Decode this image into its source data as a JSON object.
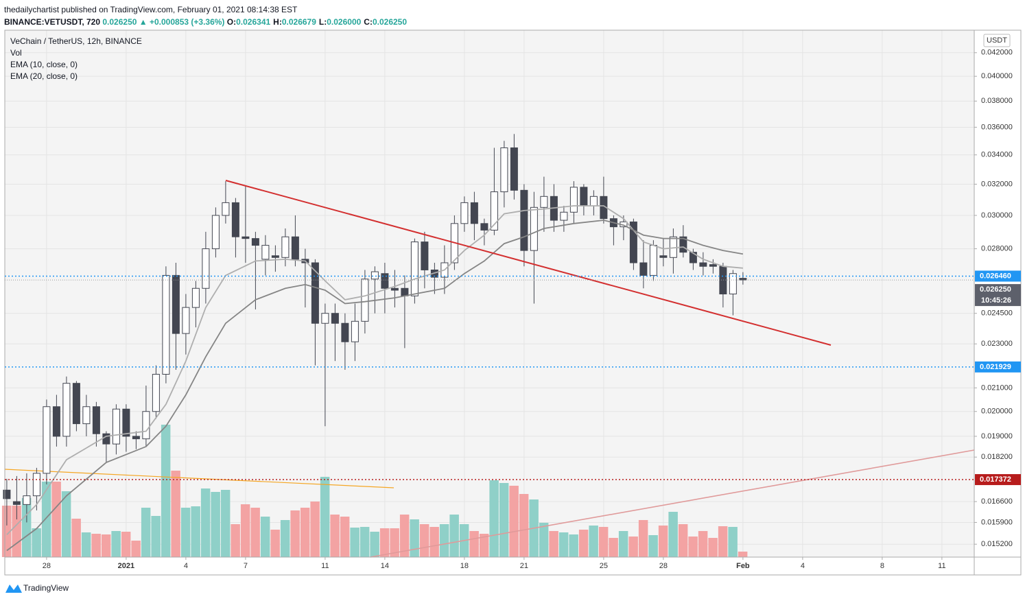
{
  "header": {
    "publisher": "thedailychartist published on TradingView.com, February 01, 2021 08:14:38 EST",
    "symbol": "BINANCE:VETUSDT, 720",
    "price": "0.026250",
    "change": "▲ +0.000853 (+3.36%)",
    "fields": [
      {
        "label": "O:",
        "value": "0.026341"
      },
      {
        "label": "H:",
        "value": "0.026679"
      },
      {
        "label": "L:",
        "value": "0.026000"
      },
      {
        "label": "C:",
        "value": "0.026250"
      }
    ]
  },
  "footer": "TradingView",
  "chart_data": {
    "type": "candlestick",
    "title": "VeChain / TetherUS, 12h, BINANCE",
    "volume_name": "Vol",
    "currency": "USDT",
    "log_scale": true,
    "grid": true,
    "ylim": [
      0.0148,
      0.044
    ],
    "yticks": [
      {
        "value": 0.042,
        "label": "0.042000"
      },
      {
        "value": 0.04,
        "label": "0.040000"
      },
      {
        "value": 0.038,
        "label": "0.038000"
      },
      {
        "value": 0.036,
        "label": "0.036000"
      },
      {
        "value": 0.034,
        "label": "0.034000"
      },
      {
        "value": 0.032,
        "label": "0.032000"
      },
      {
        "value": 0.03,
        "label": "0.030000"
      },
      {
        "value": 0.028,
        "label": "0.028000"
      },
      {
        "value": 0.0245,
        "label": "0.024500"
      },
      {
        "value": 0.023,
        "label": "0.023000"
      },
      {
        "value": 0.021,
        "label": "0.021000"
      },
      {
        "value": 0.02,
        "label": "0.020000"
      },
      {
        "value": 0.019,
        "label": "0.019000"
      },
      {
        "value": 0.0182,
        "label": "0.018200"
      },
      {
        "value": 0.0166,
        "label": "0.016600"
      },
      {
        "value": 0.0159,
        "label": "0.015900"
      },
      {
        "value": 0.0152,
        "label": "0.015200"
      }
    ],
    "xlim": [
      -0.2,
      97.25
    ],
    "xticks": [
      {
        "value": 4,
        "label": "28"
      },
      {
        "value": 12,
        "label": "2021"
      },
      {
        "value": 18,
        "label": "4"
      },
      {
        "value": 24,
        "label": "7"
      },
      {
        "value": 32,
        "label": "11"
      },
      {
        "value": 38,
        "label": "14"
      },
      {
        "value": 46,
        "label": "18"
      },
      {
        "value": 52,
        "label": "21"
      },
      {
        "value": 60,
        "label": "25"
      },
      {
        "value": 66,
        "label": "28"
      },
      {
        "value": 74,
        "label": "Feb"
      },
      {
        "value": 80,
        "label": "4"
      },
      {
        "value": 88,
        "label": "8"
      },
      {
        "value": 94,
        "label": "11"
      }
    ],
    "up_color": "#ffffff",
    "down_color": "#434651",
    "vol_up_color": "#8fd0c8",
    "vol_down_color": "#f3a3a3",
    "open": [
      0.017,
      0.0166,
      0.0165,
      0.0168,
      0.0176,
      0.0202,
      0.019,
      0.0212,
      0.0195,
      0.0202,
      0.0191,
      0.0187,
      0.0201,
      0.019,
      0.0189,
      0.02,
      0.0216,
      0.0265,
      0.0235,
      0.0248,
      0.0258,
      0.028,
      0.03,
      0.0308,
      0.0287,
      0.0286,
      0.0274,
      0.0276,
      0.0275,
      0.0287,
      0.0274,
      0.0272,
      0.024,
      0.0245,
      0.024,
      0.0231,
      0.0241,
      0.0263,
      0.0266,
      0.0258,
      0.0258,
      0.0254,
      0.0284,
      0.0268,
      0.0264,
      0.0272,
      0.0295,
      0.0308,
      0.0295,
      0.0291,
      0.0315,
      0.0345,
      0.0316,
      0.0279,
      0.0305,
      0.0312,
      0.0297,
      0.0302,
      0.0318,
      0.0306,
      0.0312,
      0.0298,
      0.0293,
      0.0296,
      0.0272,
      0.0265,
      0.0276,
      0.0275,
      0.0287,
      0.0278,
      0.0272,
      0.0271,
      0.027,
      0.0255,
      0.026341
    ],
    "high": [
      0.0174,
      0.0175,
      0.0176,
      0.0178,
      0.0205,
      0.0207,
      0.0215,
      0.0213,
      0.0207,
      0.0204,
      0.0192,
      0.0203,
      0.0203,
      0.0192,
      0.0211,
      0.022,
      0.027,
      0.0272,
      0.0255,
      0.0262,
      0.029,
      0.0305,
      0.0322,
      0.0311,
      0.0319,
      0.029,
      0.0288,
      0.0282,
      0.0292,
      0.03,
      0.028,
      0.0274,
      0.025,
      0.025,
      0.0245,
      0.025,
      0.0268,
      0.027,
      0.0272,
      0.0268,
      0.0265,
      0.0286,
      0.029,
      0.0272,
      0.0282,
      0.03,
      0.0312,
      0.0315,
      0.0298,
      0.0345,
      0.035,
      0.0355,
      0.032,
      0.0315,
      0.0325,
      0.032,
      0.0306,
      0.0322,
      0.032,
      0.0316,
      0.0325,
      0.03,
      0.03,
      0.0298,
      0.0285,
      0.0285,
      0.0286,
      0.0292,
      0.0294,
      0.028,
      0.0278,
      0.0274,
      0.0272,
      0.0268,
      0.026679
    ],
    "low": [
      0.0158,
      0.016,
      0.0159,
      0.0163,
      0.0172,
      0.0186,
      0.0186,
      0.0192,
      0.019,
      0.0186,
      0.018,
      0.0183,
      0.0184,
      0.0185,
      0.0186,
      0.0197,
      0.0212,
      0.0218,
      0.0225,
      0.0238,
      0.025,
      0.0275,
      0.0295,
      0.0275,
      0.0272,
      0.0247,
      0.0265,
      0.0267,
      0.027,
      0.027,
      0.0248,
      0.022,
      0.0194,
      0.0222,
      0.0218,
      0.0222,
      0.0235,
      0.0245,
      0.0245,
      0.0248,
      0.0228,
      0.025,
      0.0258,
      0.0255,
      0.0255,
      0.0268,
      0.029,
      0.0285,
      0.0282,
      0.0288,
      0.0305,
      0.031,
      0.027,
      0.025,
      0.029,
      0.029,
      0.029,
      0.0295,
      0.03,
      0.03,
      0.0295,
      0.0282,
      0.0285,
      0.0268,
      0.0258,
      0.0262,
      0.027,
      0.0266,
      0.0275,
      0.0268,
      0.0265,
      0.0266,
      0.0248,
      0.0244,
      0.026
    ],
    "close": [
      0.0167,
      0.0165,
      0.0168,
      0.0176,
      0.0202,
      0.019,
      0.0212,
      0.0195,
      0.0202,
      0.0191,
      0.0187,
      0.0201,
      0.019,
      0.0189,
      0.02,
      0.0216,
      0.0265,
      0.0235,
      0.0248,
      0.0258,
      0.028,
      0.03,
      0.0308,
      0.0287,
      0.0286,
      0.0282,
      0.0282,
      0.0275,
      0.0287,
      0.0274,
      0.0272,
      0.024,
      0.0245,
      0.024,
      0.0231,
      0.0241,
      0.0263,
      0.0267,
      0.0258,
      0.0257,
      0.0254,
      0.0284,
      0.0268,
      0.0264,
      0.0272,
      0.0295,
      0.0308,
      0.0295,
      0.0291,
      0.0315,
      0.0345,
      0.0316,
      0.0279,
      0.0305,
      0.0312,
      0.0297,
      0.0302,
      0.0318,
      0.0306,
      0.0312,
      0.0298,
      0.0293,
      0.0296,
      0.0272,
      0.0265,
      0.0282,
      0.0275,
      0.0287,
      0.0278,
      0.0272,
      0.027,
      0.027,
      0.0255,
      0.0266,
      0.02625
    ],
    "volume": [
      75,
      75,
      86,
      42,
      110,
      110,
      96,
      56,
      36,
      34,
      33,
      38,
      37,
      24,
      72,
      60,
      193,
      126,
      72,
      74,
      100,
      95,
      98,
      48,
      77,
      72,
      59,
      40,
      54,
      68,
      72,
      81,
      117,
      62,
      59,
      43,
      44,
      37,
      42,
      42,
      62,
      55,
      48,
      44,
      48,
      62,
      48,
      38,
      34,
      112,
      108,
      104,
      92,
      84,
      50,
      38,
      36,
      33,
      40,
      46,
      44,
      28,
      38,
      30,
      54,
      32,
      46,
      66,
      48,
      30,
      38,
      28,
      45,
      44,
      8
    ],
    "series": [
      {
        "name": "EMA (10, close, 0)",
        "color": "#aeaeae",
        "x": [
          0,
          3,
          6,
          10,
          14,
          16,
          18,
          20,
          22,
          25,
          28,
          30,
          32,
          34,
          36,
          39,
          41,
          44,
          46,
          48,
          50,
          52,
          54,
          57,
          60,
          62,
          64,
          66,
          68,
          70,
          72,
          74
        ],
        "values": [
          0.0155,
          0.0165,
          0.0181,
          0.019,
          0.0192,
          0.0203,
          0.0222,
          0.0248,
          0.0265,
          0.0273,
          0.0274,
          0.0273,
          0.0262,
          0.0252,
          0.0254,
          0.0259,
          0.0263,
          0.0268,
          0.0279,
          0.0288,
          0.0301,
          0.0303,
          0.0304,
          0.0306,
          0.0306,
          0.0298,
          0.0284,
          0.028,
          0.0281,
          0.0274,
          0.027,
          0.0269
        ]
      },
      {
        "name": "EMA (20, close, 0)",
        "color": "#858585",
        "x": [
          0,
          3,
          6,
          10,
          14,
          16,
          18,
          20,
          22,
          25,
          28,
          30,
          32,
          34,
          36,
          39,
          41,
          44,
          46,
          48,
          50,
          52,
          54,
          57,
          60,
          62,
          64,
          66,
          68,
          70,
          72,
          74
        ],
        "values": [
          0.015,
          0.0157,
          0.0168,
          0.018,
          0.0186,
          0.0194,
          0.0207,
          0.0224,
          0.024,
          0.0252,
          0.0258,
          0.026,
          0.0257,
          0.025,
          0.0251,
          0.0253,
          0.0255,
          0.0258,
          0.0266,
          0.0273,
          0.0283,
          0.0287,
          0.0292,
          0.0295,
          0.0297,
          0.0294,
          0.0288,
          0.0286,
          0.0286,
          0.0282,
          0.0279,
          0.0277
        ]
      }
    ],
    "price_lines": [
      {
        "value": 0.02646,
        "label": "0.026460",
        "color": "#2196f3"
      },
      {
        "value": 0.021929,
        "label": "0.021929",
        "color": "#2196f3"
      },
      {
        "value": 0.017372,
        "label": "0.017372",
        "color": "#b71c1c"
      }
    ],
    "last_price": {
      "value": 0.02625,
      "label": "0.026250",
      "timer": "10:45:26"
    }
  }
}
